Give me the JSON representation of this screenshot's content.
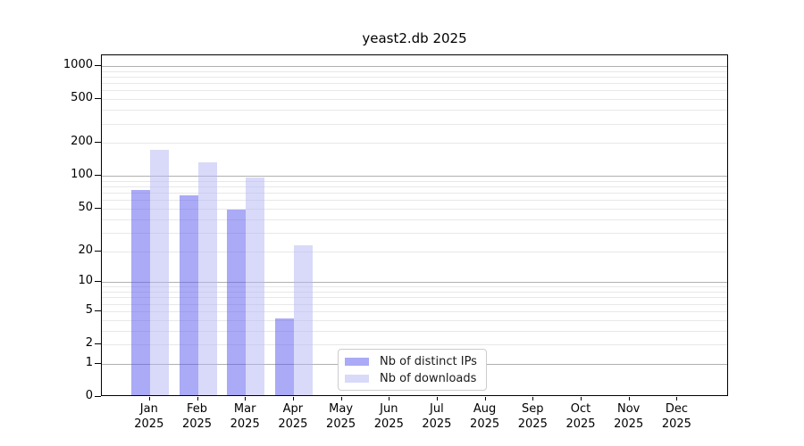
{
  "title": "yeast2.db 2025",
  "colors": {
    "background": "#ffffff",
    "axis": "#000000",
    "major_grid": "#b0b0b0",
    "minor_grid": "#e8e8e8",
    "legend_border": "#cccccc",
    "series_ips": "#5555ee",
    "series_downloads": "#b3b3f3"
  },
  "chart_data": {
    "type": "bar",
    "title": "yeast2.db 2025",
    "categories": [
      "Jan",
      "Feb",
      "Mar",
      "Apr",
      "May",
      "Jun",
      "Jul",
      "Aug",
      "Sep",
      "Oct",
      "Nov",
      "Dec"
    ],
    "year": "2025",
    "series": [
      {
        "name": "Nb of distinct IPs",
        "color": "#5555ee",
        "alpha": 0.5,
        "values": [
          72,
          64,
          47,
          4,
          0,
          0,
          0,
          0,
          0,
          0,
          0,
          0
        ]
      },
      {
        "name": "Nb of downloads",
        "color": "#b3b3f3",
        "alpha": 0.5,
        "values": [
          168,
          127,
          93,
          22,
          0,
          0,
          0,
          0,
          0,
          0,
          0,
          0
        ]
      }
    ],
    "xlabel": "",
    "ylabel": "",
    "yscale": "log1p",
    "ylim": [
      0,
      1250
    ],
    "yticks": [
      0,
      1,
      2,
      5,
      10,
      20,
      50,
      100,
      200,
      500,
      1000
    ],
    "major_gridlines": [
      1,
      10,
      100,
      1000
    ],
    "minor_gridlines": [
      2,
      3,
      4,
      5,
      6,
      7,
      8,
      9,
      20,
      30,
      40,
      50,
      60,
      70,
      80,
      90,
      200,
      300,
      400,
      500,
      600,
      700,
      800,
      900
    ],
    "grid": true,
    "legend_position": "lower center"
  }
}
